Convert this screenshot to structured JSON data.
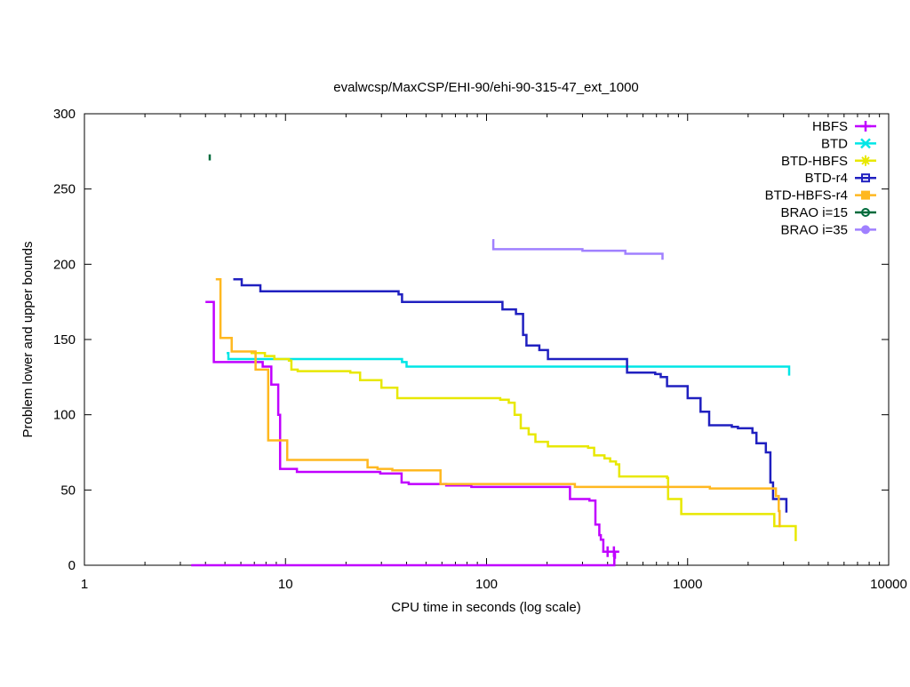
{
  "chart_data": {
    "type": "line",
    "title": "evalwcsp/MaxCSP/EHI-90/ehi-90-315-47_ext_1000",
    "xlabel": "CPU time in seconds (log scale)",
    "ylabel": "Problem lower and upper bounds",
    "xscale": "log",
    "xlim": [
      1,
      10000
    ],
    "ylim": [
      0,
      300
    ],
    "xticks": [
      1,
      10,
      100,
      1000,
      10000
    ],
    "xtick_labels": [
      "1",
      "10",
      "100",
      "1000",
      "10000"
    ],
    "yticks": [
      0,
      50,
      100,
      150,
      200,
      250,
      300
    ],
    "ytick_labels": [
      "0",
      "50",
      "100",
      "150",
      "200",
      "250",
      "300"
    ],
    "grid": false,
    "legend_position": "top-right",
    "step": "post",
    "series": [
      {
        "name": "HBFS",
        "color": "#c000ff",
        "marker": "plus",
        "points": [
          [
            4.0,
            175
          ],
          [
            4.4,
            135
          ],
          [
            7.7,
            132
          ],
          [
            8.5,
            120
          ],
          [
            9.2,
            100
          ],
          [
            9.4,
            64
          ],
          [
            11.4,
            62
          ],
          [
            29.6,
            61
          ],
          [
            37.8,
            55
          ],
          [
            41,
            54
          ],
          [
            63,
            53
          ],
          [
            84,
            52
          ],
          [
            260,
            44
          ],
          [
            325,
            43
          ],
          [
            348,
            27
          ],
          [
            364,
            20
          ],
          [
            370,
            17
          ],
          [
            381,
            9
          ],
          [
            430,
            9
          ]
        ],
        "lower": [
          [
            3.4,
            0
          ],
          [
            430,
            0
          ],
          [
            432,
            5
          ],
          [
            435,
            9
          ]
        ],
        "marker_points": [
          [
            400,
            9
          ],
          [
            430,
            9
          ]
        ]
      },
      {
        "name": "BTD",
        "color": "#00e6e6",
        "marker": "cross",
        "points": [
          [
            5.1,
            141
          ],
          [
            5.2,
            137
          ],
          [
            37,
            137
          ],
          [
            38,
            135
          ],
          [
            40,
            132
          ],
          [
            3200,
            132
          ],
          [
            3200,
            126
          ]
        ]
      },
      {
        "name": "BTD-HBFS",
        "color": "#e8e800",
        "marker": "star",
        "points": [
          [
            6.7,
            141
          ],
          [
            7.9,
            139
          ],
          [
            8.8,
            137
          ],
          [
            10.4,
            136
          ],
          [
            10.7,
            130
          ],
          [
            11.5,
            129
          ],
          [
            21,
            128
          ],
          [
            23.5,
            123
          ],
          [
            30,
            118
          ],
          [
            36,
            111
          ],
          [
            117,
            110
          ],
          [
            129,
            108
          ],
          [
            138,
            100
          ],
          [
            148,
            91
          ],
          [
            162,
            87
          ],
          [
            175,
            82
          ],
          [
            202,
            79
          ],
          [
            320,
            78
          ],
          [
            343,
            73
          ],
          [
            386,
            71
          ],
          [
            412,
            69
          ],
          [
            440,
            67
          ],
          [
            457,
            59
          ],
          [
            790,
            58
          ],
          [
            800,
            44
          ],
          [
            930,
            34
          ],
          [
            2700,
            26
          ],
          [
            3450,
            26
          ],
          [
            3450,
            16
          ]
        ]
      },
      {
        "name": "BTD-r4",
        "color": "#2020c0",
        "marker": "square",
        "points": [
          [
            5.5,
            190
          ],
          [
            6.06,
            186
          ],
          [
            7.5,
            182
          ],
          [
            36.5,
            180
          ],
          [
            38,
            175
          ],
          [
            120,
            170
          ],
          [
            140,
            167
          ],
          [
            152,
            153
          ],
          [
            158,
            146
          ],
          [
            183,
            143
          ],
          [
            202,
            137
          ],
          [
            500,
            128
          ],
          [
            690,
            127
          ],
          [
            735,
            125
          ],
          [
            790,
            119
          ],
          [
            1000,
            111
          ],
          [
            1160,
            102
          ],
          [
            1280,
            93
          ],
          [
            1660,
            92
          ],
          [
            1780,
            91
          ],
          [
            2100,
            88
          ],
          [
            2200,
            81
          ],
          [
            2450,
            75
          ],
          [
            2580,
            55
          ],
          [
            2660,
            44
          ],
          [
            3100,
            44
          ],
          [
            3100,
            35
          ]
        ]
      },
      {
        "name": "BTD-HBFS-r4",
        "color": "#ffb820",
        "marker": "filled-square",
        "points": [
          [
            4.5,
            190
          ],
          [
            4.75,
            151
          ],
          [
            5.4,
            142
          ],
          [
            7.1,
            130
          ],
          [
            8.2,
            83
          ],
          [
            10.2,
            70
          ],
          [
            25.6,
            65
          ],
          [
            28.7,
            64
          ],
          [
            34,
            63
          ],
          [
            59,
            54
          ],
          [
            275,
            52
          ],
          [
            1290,
            51
          ],
          [
            2750,
            46
          ],
          [
            2840,
            36
          ],
          [
            2870,
            26
          ],
          [
            2900,
            26
          ]
        ]
      },
      {
        "name": "BRAO i=15",
        "color": "#006b3c",
        "marker": "circle",
        "points": [
          [
            4.2,
            269
          ],
          [
            4.2,
            273
          ]
        ]
      },
      {
        "name": "BRAO i=35",
        "color": "#a080ff",
        "marker": "filled-circle",
        "points": [
          [
            107,
            216
          ],
          [
            108,
            210
          ],
          [
            300,
            209
          ],
          [
            490,
            207
          ],
          [
            750,
            205
          ],
          [
            750,
            203
          ]
        ]
      }
    ]
  }
}
